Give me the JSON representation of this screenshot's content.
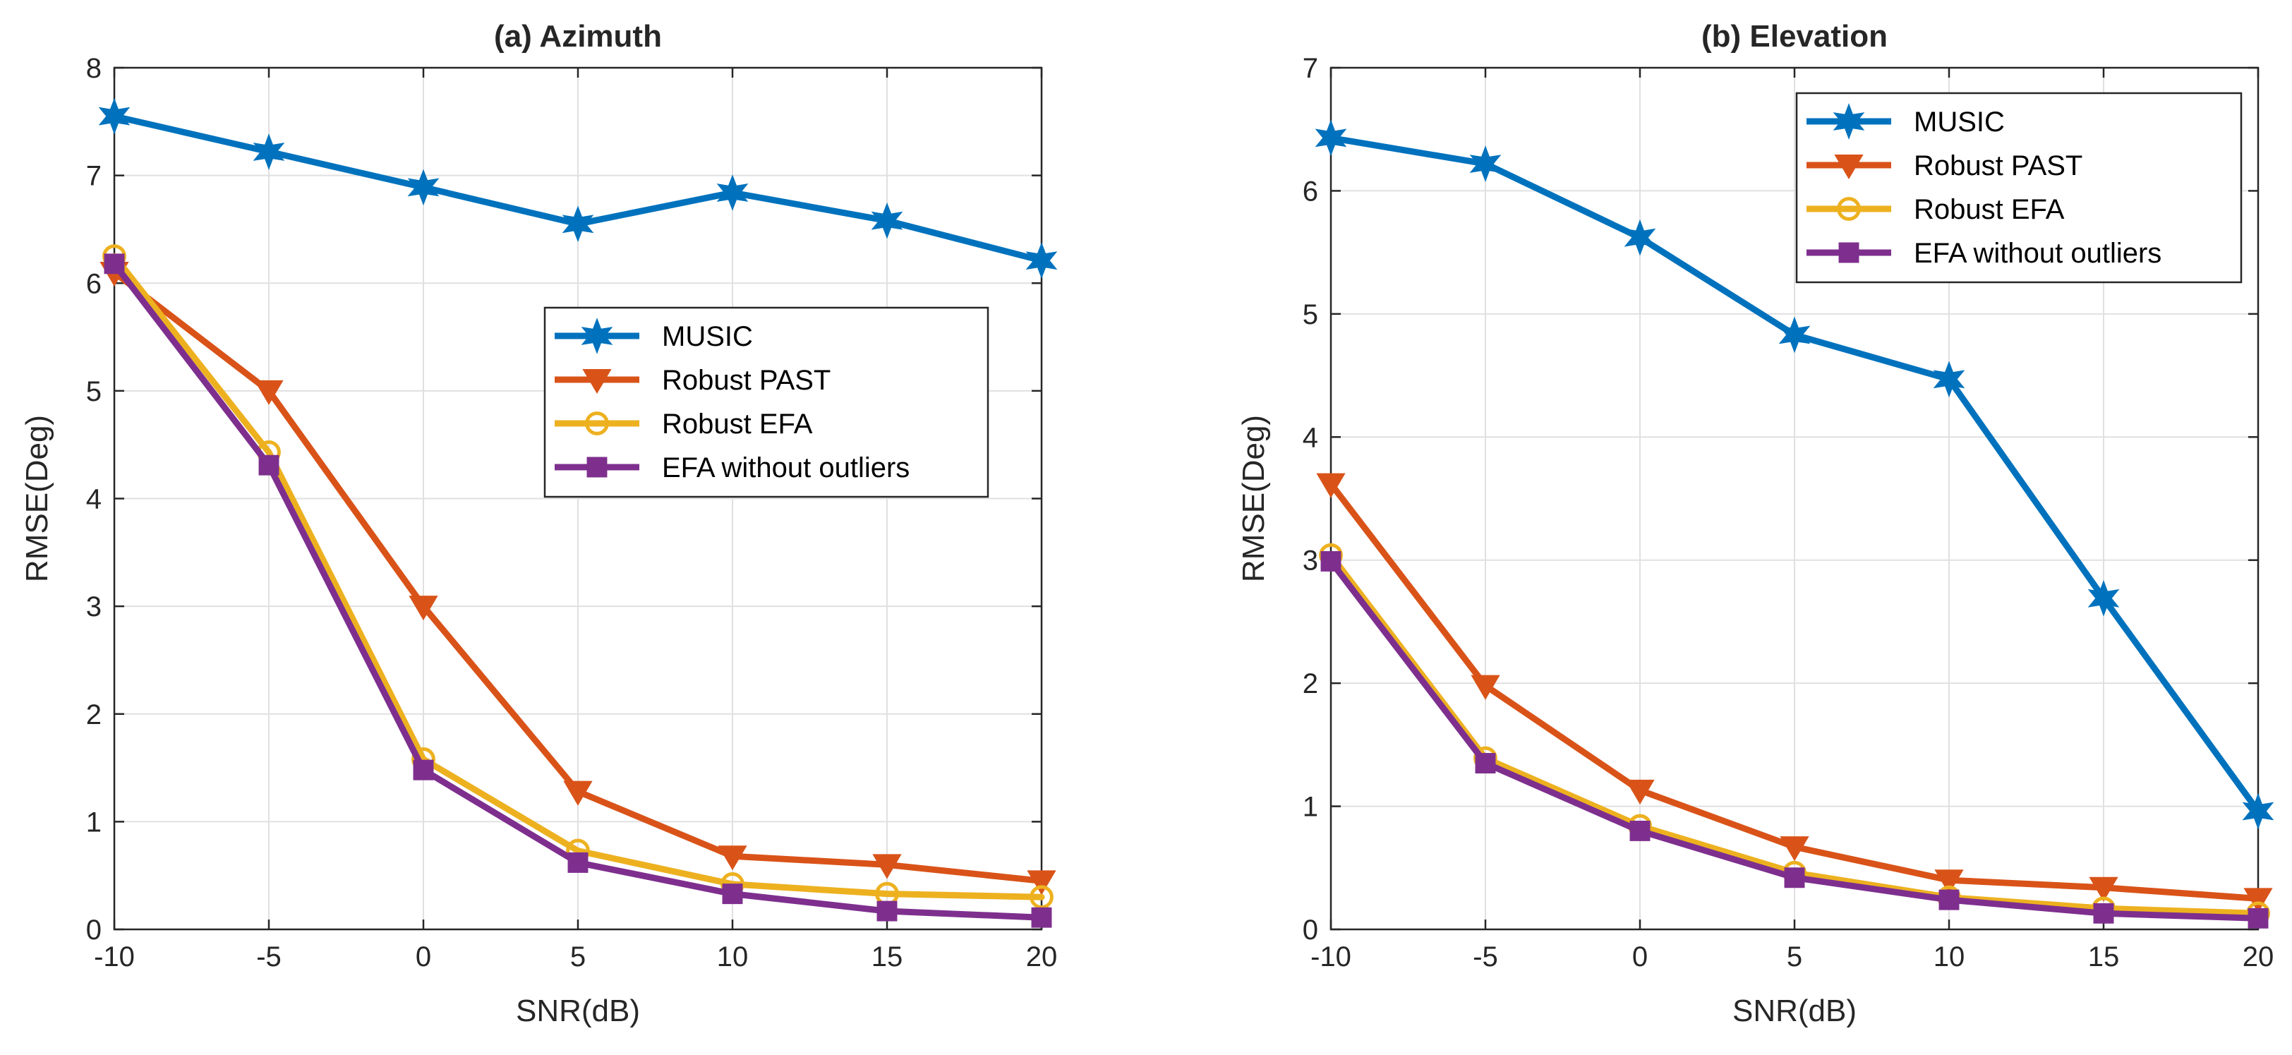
{
  "chart_data": [
    {
      "type": "line",
      "title": "(a) Azimuth",
      "xlabel": "SNR(dB)",
      "ylabel": "RMSE(Deg)",
      "x": [
        -10,
        -5,
        0,
        5,
        10,
        15,
        20
      ],
      "xlim": [
        -10,
        20
      ],
      "ylim": [
        0,
        8
      ],
      "xticks": [
        "-10",
        "-5",
        "0",
        "5",
        "10",
        "15",
        "20"
      ],
      "yticks": [
        "0",
        "1",
        "2",
        "3",
        "4",
        "5",
        "6",
        "7",
        "8"
      ],
      "grid": true,
      "legend_position": "center-right",
      "series": [
        {
          "name": "MUSIC",
          "marker": "star",
          "values": [
            7.55,
            7.22,
            6.89,
            6.55,
            6.84,
            6.58,
            6.21
          ]
        },
        {
          "name": "Robust PAST",
          "marker": "triangle-down",
          "values": [
            6.1,
            5.0,
            3.0,
            1.28,
            0.68,
            0.6,
            0.45
          ]
        },
        {
          "name": "Robust EFA",
          "marker": "circle",
          "values": [
            6.25,
            4.43,
            1.58,
            0.73,
            0.42,
            0.33,
            0.3
          ]
        },
        {
          "name": "EFA without outliers",
          "marker": "square",
          "values": [
            6.18,
            4.31,
            1.48,
            0.62,
            0.33,
            0.17,
            0.11
          ]
        }
      ]
    },
    {
      "type": "line",
      "title": "(b) Elevation",
      "xlabel": "SNR(dB)",
      "ylabel": "RMSE(Deg)",
      "x": [
        -10,
        -5,
        0,
        5,
        10,
        15,
        20
      ],
      "xlim": [
        -10,
        20
      ],
      "ylim": [
        0,
        7
      ],
      "xticks": [
        "-10",
        "-5",
        "0",
        "5",
        "10",
        "15",
        "20"
      ],
      "yticks": [
        "0",
        "1",
        "2",
        "3",
        "4",
        "5",
        "6",
        "7"
      ],
      "grid": true,
      "legend_position": "top-right",
      "series": [
        {
          "name": "MUSIC",
          "marker": "star",
          "values": [
            6.43,
            6.22,
            5.62,
            4.83,
            4.47,
            2.69,
            0.96
          ]
        },
        {
          "name": "Robust PAST",
          "marker": "triangle-down",
          "values": [
            3.62,
            1.98,
            1.13,
            0.67,
            0.4,
            0.34,
            0.25
          ]
        },
        {
          "name": "Robust EFA",
          "marker": "circle",
          "values": [
            3.04,
            1.39,
            0.84,
            0.46,
            0.26,
            0.17,
            0.13
          ]
        },
        {
          "name": "EFA without outliers",
          "marker": "square",
          "values": [
            2.99,
            1.35,
            0.8,
            0.42,
            0.24,
            0.13,
            0.09
          ]
        }
      ]
    }
  ],
  "colors": {
    "MUSIC": "#0072BD",
    "Robust PAST": "#D95319",
    "Robust EFA": "#EDB120",
    "EFA without outliers": "#7E2F8E",
    "grid": "#E0E0E0",
    "axis": "#262626"
  }
}
